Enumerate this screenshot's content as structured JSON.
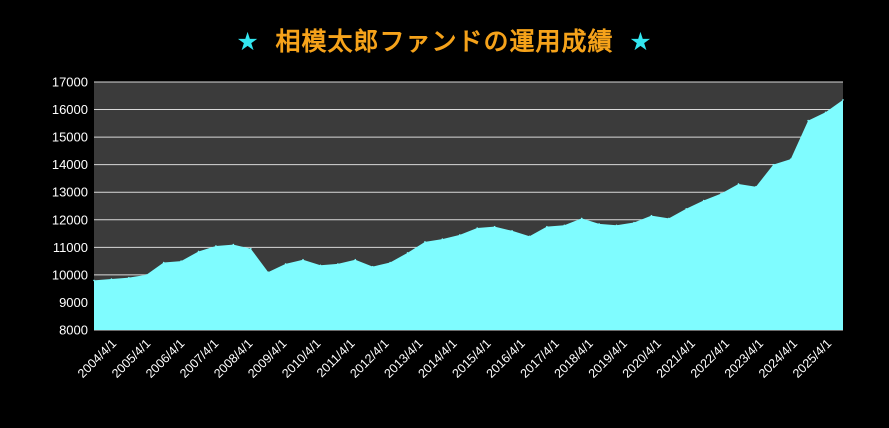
{
  "title": {
    "star_left": "★",
    "text": "相模太郎ファンドの運用成績",
    "star_right": "★"
  },
  "colors": {
    "background": "#000000",
    "plot_background": "#3b3b3b",
    "area_fill": "#7ffcff",
    "gridline": "#d9d9d9",
    "title_text": "#f5a21a",
    "title_star": "#33e6f0"
  },
  "chart_data": {
    "type": "area",
    "title": "相模太郎ファンドの運用成績",
    "xlabel": "",
    "ylabel": "",
    "ylim": [
      8000,
      17000
    ],
    "yticks": [
      8000,
      9000,
      10000,
      11000,
      12000,
      13000,
      14000,
      15000,
      16000,
      17000
    ],
    "xtick_labels": [
      "2004/4/1",
      "2005/4/1",
      "2006/4/1",
      "2007/4/1",
      "2008/4/1",
      "2009/4/1",
      "2010/4/1",
      "2011/4/1",
      "2012/4/1",
      "2013/4/1",
      "2014/4/1",
      "2015/4/1",
      "2016/4/1",
      "2017/4/1",
      "2018/4/1",
      "2019/4/1",
      "2020/4/1",
      "2021/4/1",
      "2022/4/1",
      "2023/4/1",
      "2024/4/1",
      "2025/4/1"
    ],
    "grid": true,
    "legend": "none",
    "series": [
      {
        "values": [
          9800,
          9850,
          9900,
          10000,
          10450,
          10500,
          10850,
          11050,
          11100,
          10950,
          10100,
          10400,
          10550,
          10350,
          10400,
          10550,
          10300,
          10450,
          10800,
          11200,
          11300,
          11450,
          11700,
          11750,
          11600,
          11400,
          11750,
          11800,
          12050,
          11850,
          11800,
          11900,
          12150,
          12050,
          12400,
          12700,
          12950,
          13300,
          13200,
          14000,
          14200,
          15600,
          15900,
          16350
        ]
      }
    ]
  }
}
